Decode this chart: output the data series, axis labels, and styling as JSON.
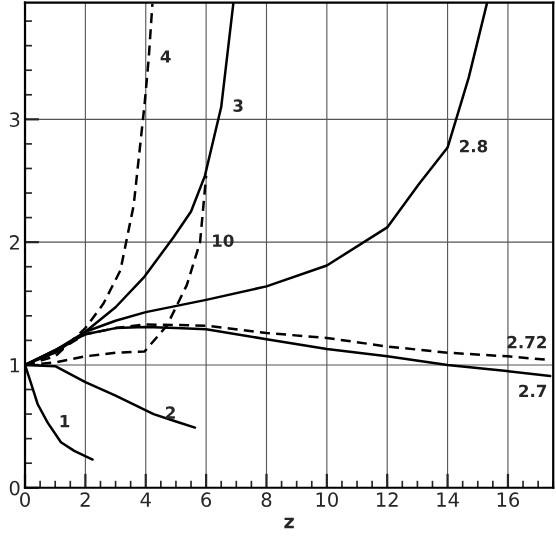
{
  "chart_data": {
    "type": "line",
    "xlabel": "z",
    "xlim": [
      0,
      17.5
    ],
    "ylim": [
      0,
      3.95
    ],
    "xticks": [
      0,
      2,
      4,
      6,
      8,
      10,
      12,
      14,
      16
    ],
    "yticks": [
      0,
      1,
      2,
      3
    ],
    "grid": true,
    "marker": "none",
    "series": [
      {
        "color": "#000000",
        "line_style": "solid",
        "x": [
          0,
          0.2,
          0.42,
          0.75,
          1.19,
          1.63,
          2.24
        ],
        "values": [
          1,
          0.85,
          0.68,
          0.53,
          0.37,
          0.3,
          0.23
        ]
      },
      {
        "color": "#000000",
        "line_style": "solid",
        "x": [
          0,
          1,
          2,
          3,
          4.26,
          5,
          5.63
        ],
        "values": [
          1,
          0.99,
          0.86,
          0.75,
          0.6,
          0.54,
          0.49
        ]
      },
      {
        "color": "#000000",
        "line_style": "dashed",
        "x": [
          0,
          1,
          2,
          2.6,
          3.16,
          3.6,
          3.96,
          4.1,
          4.22
        ],
        "values": [
          1,
          1.07,
          1.3,
          1.5,
          1.77,
          2.3,
          3.12,
          3.5,
          3.94
        ]
      },
      {
        "color": "#000000",
        "line_style": "solid",
        "x": [
          0,
          1,
          2,
          3,
          3.96,
          4.92,
          5.5,
          5.96,
          6.5,
          6.9
        ],
        "values": [
          1,
          1.1,
          1.27,
          1.47,
          1.72,
          2.04,
          2.25,
          2.54,
          3.1,
          3.94
        ]
      },
      {
        "color": "#000000",
        "line_style": "dashed",
        "x": [
          0,
          1,
          2,
          3,
          3.96,
          4.7,
          5.36,
          5.8,
          6.0
        ],
        "values": [
          1,
          1.02,
          1.07,
          1.1,
          1.11,
          1.32,
          1.65,
          2.0,
          2.54
        ]
      },
      {
        "color": "#000000",
        "line_style": "solid",
        "x": [
          0,
          1,
          2,
          3,
          4,
          6,
          8,
          10,
          12,
          13.04,
          14,
          14.7,
          15.3
        ],
        "values": [
          1,
          1.12,
          1.27,
          1.36,
          1.43,
          1.53,
          1.64,
          1.81,
          2.12,
          2.47,
          2.77,
          3.34,
          3.94
        ]
      },
      {
        "color": "#000000",
        "line_style": "dashed",
        "x": [
          0,
          1,
          2,
          3,
          4,
          6,
          8,
          10,
          12,
          14,
          16,
          17.4
        ],
        "values": [
          1,
          1.1,
          1.25,
          1.3,
          1.33,
          1.32,
          1.26,
          1.22,
          1.15,
          1.1,
          1.07,
          1.04
        ]
      },
      {
        "color": "#000000",
        "line_style": "solid",
        "x": [
          0,
          1,
          2,
          3,
          4,
          5,
          6,
          8,
          10,
          12,
          14,
          15.96,
          17.4
        ],
        "values": [
          1,
          1.12,
          1.25,
          1.3,
          1.31,
          1.3,
          1.29,
          1.21,
          1.13,
          1.07,
          1.0,
          0.95,
          0.91
        ]
      }
    ],
    "annotations": [
      {
        "text": "1",
        "x": 0.75,
        "y": 0.53
      },
      {
        "text": "2",
        "x": 4.26,
        "y": 0.6
      },
      {
        "text": "4",
        "x": 4.1,
        "y": 3.5
      },
      {
        "text": "3",
        "x": 6.5,
        "y": 3.1
      },
      {
        "text": "10",
        "x": 5.8,
        "y": 2.0
      },
      {
        "text": "2.8",
        "x": 14,
        "y": 2.77
      },
      {
        "text": "2.72",
        "x": 17.4,
        "y": 1.04
      },
      {
        "text": "2.7",
        "x": 17.4,
        "y": 0.91
      }
    ]
  }
}
